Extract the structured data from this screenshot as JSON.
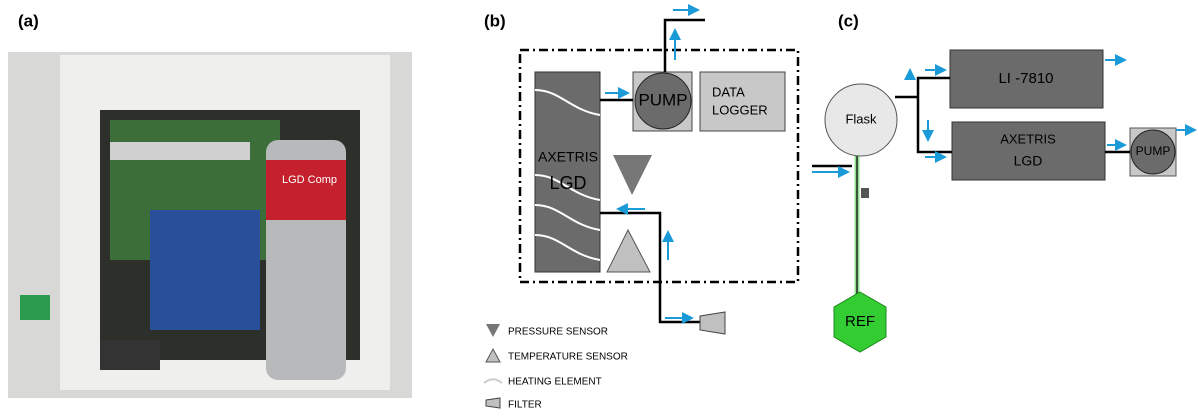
{
  "panel_a": {
    "label": "(a)",
    "photo_text": "LGD Comp"
  },
  "panel_b": {
    "label": "(b)",
    "lgd": [
      "AXETRIS",
      "LGD"
    ],
    "pump": "PUMP",
    "logger": [
      "DATA",
      "LOGGER"
    ],
    "legend": [
      "PRESSURE SENSOR",
      "TEMPERATURE SENSOR",
      "HEATING ELEMENT",
      "FILTER"
    ]
  },
  "panel_c": {
    "label": "(c)",
    "analyzer": "LI -7810",
    "flask": "Flask",
    "lgd": [
      "AXETRIS",
      "LGD"
    ],
    "pump": "PUMP",
    "ref": "REF"
  }
}
